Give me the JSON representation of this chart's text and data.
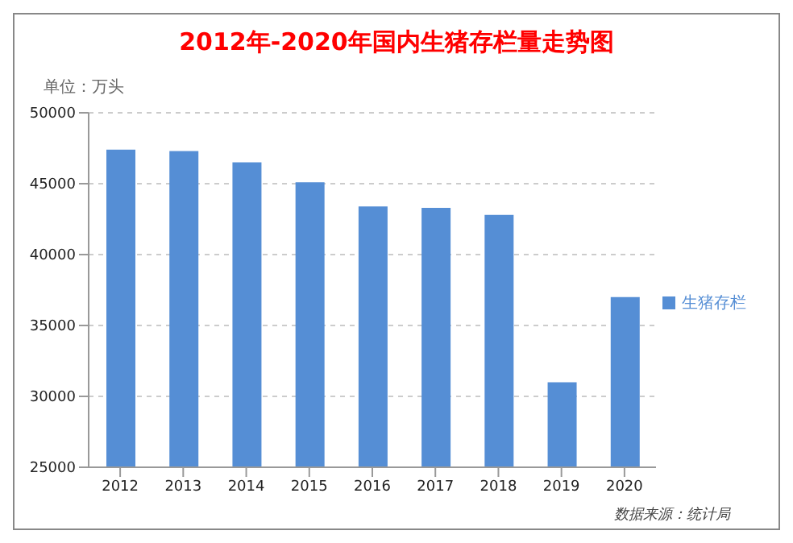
{
  "chart_data": {
    "type": "bar",
    "title": "2012年-2020年国内生猪存栏量走势图",
    "ylabel": "单位：万头",
    "categories": [
      "2012",
      "2013",
      "2014",
      "2015",
      "2016",
      "2017",
      "2018",
      "2019",
      "2020"
    ],
    "series": [
      {
        "name": "生猪存栏",
        "color": "#558ed5",
        "values": [
          47400,
          47300,
          46500,
          45100,
          43400,
          43300,
          42800,
          31000,
          37000
        ]
      }
    ],
    "ylim": [
      25000,
      50000
    ],
    "yticks": [
      25000,
      30000,
      35000,
      40000,
      45000,
      50000
    ],
    "grid": "y",
    "legend": "right",
    "annotations": [
      "数据来源：统计局"
    ]
  }
}
